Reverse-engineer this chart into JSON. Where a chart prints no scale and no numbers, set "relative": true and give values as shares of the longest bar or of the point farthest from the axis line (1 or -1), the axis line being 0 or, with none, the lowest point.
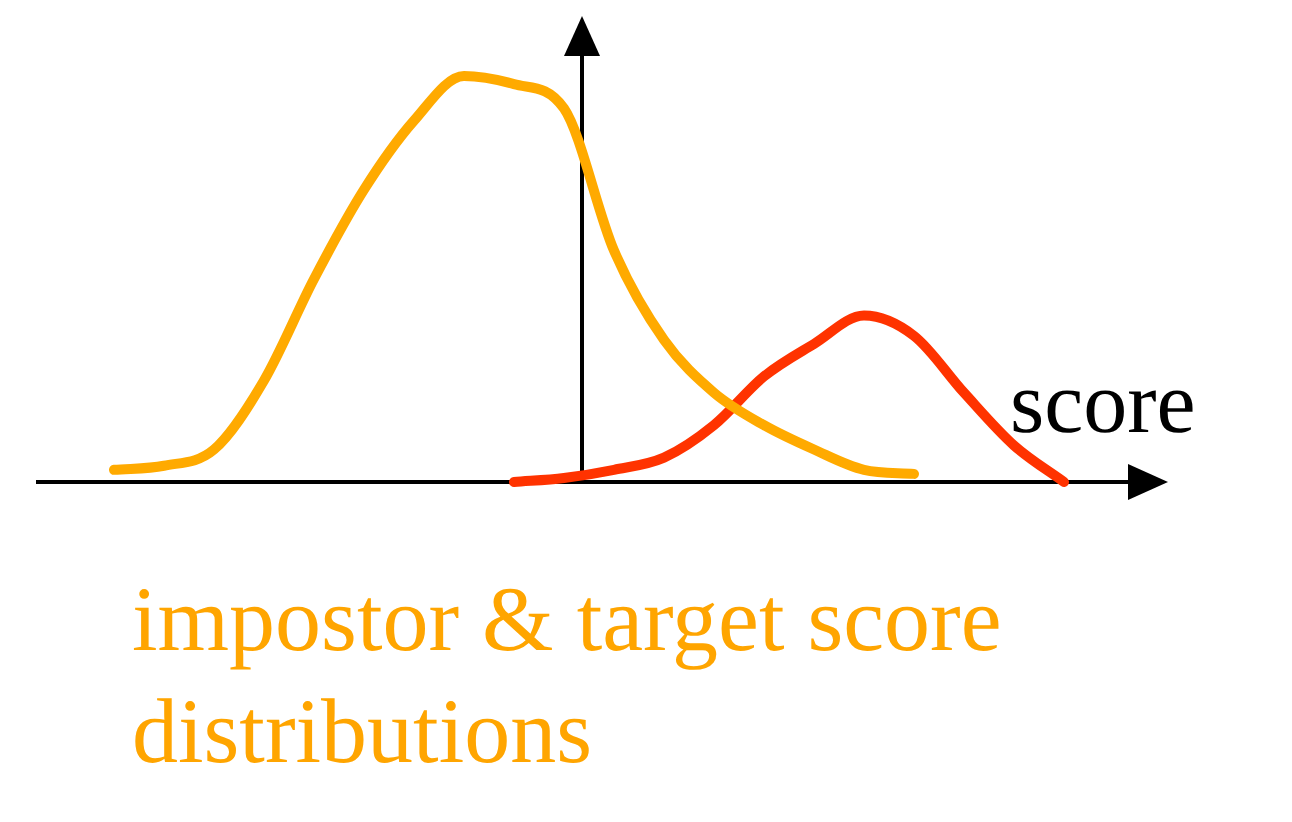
{
  "chart_data": {
    "type": "line",
    "title": "impostor & target score distributions",
    "xlabel": "score",
    "relative": true,
    "categories": [
      null,
      null,
      null,
      null,
      null,
      null,
      null,
      null,
      null,
      null,
      null,
      null,
      null,
      null,
      null,
      null,
      null,
      null,
      null,
      null
    ],
    "series": [
      {
        "color": "#ffaa00",
        "values": [
          0.03,
          0.04,
          0.08,
          0.25,
          0.5,
          0.72,
          0.89,
          1,
          0.98,
          0.92,
          0.57,
          0.35,
          0.22,
          0.14,
          0.08,
          0.03,
          0.02,
          null,
          null,
          null
        ]
      },
      {
        "color": "#ff3300",
        "values": [
          null,
          null,
          null,
          null,
          null,
          null,
          null,
          null,
          0,
          0.01,
          0.03,
          0.06,
          0.14,
          0.26,
          0.34,
          0.41,
          0.36,
          0.22,
          0.09,
          0
        ]
      }
    ]
  }
}
